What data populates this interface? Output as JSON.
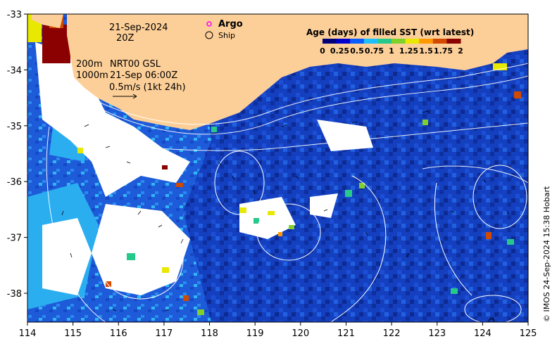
{
  "map": {
    "date_label": "21-Sep-2024",
    "time_label": "20Z",
    "depth_shallow": "200m",
    "depth_deep": "1000m",
    "product": "NRT00 GSL",
    "product_time": "21-Sep 06:00Z",
    "vector_scale": "0.5m/s (1kt 24h)",
    "legend_argo": "Argo",
    "legend_ship": "Ship",
    "colorbar_title": "Age (days) of filled SST (wrt latest)",
    "colorbar_ticks": [
      "0",
      "0.25",
      "0.5",
      "0.75",
      "1",
      "1.25",
      "1.5",
      "1.75",
      "2"
    ],
    "colorbar_colors": [
      "#00007a",
      "#0000cc",
      "#0a5cff",
      "#1cc0ff",
      "#27c98a",
      "#7fd02a",
      "#e8e800",
      "#ff9900",
      "#d24a00",
      "#8b0000"
    ],
    "credit": "© IMOS 24-Sep-2024 15:38 Hobart",
    "x_ticks": [
      "114",
      "115",
      "116",
      "117",
      "118",
      "119",
      "120",
      "121",
      "122",
      "123",
      "124",
      "125"
    ],
    "y_ticks": [
      "-33",
      "-34",
      "-35",
      "-36",
      "-37",
      "-38"
    ],
    "colors": {
      "land": "#fdcf98",
      "ocean_deep": "#1133b0",
      "ocean_mid": "#1f56d8",
      "ocean_light": "#2aaef0",
      "cloud": "#ffffff",
      "argo": "#ff00ff"
    }
  }
}
